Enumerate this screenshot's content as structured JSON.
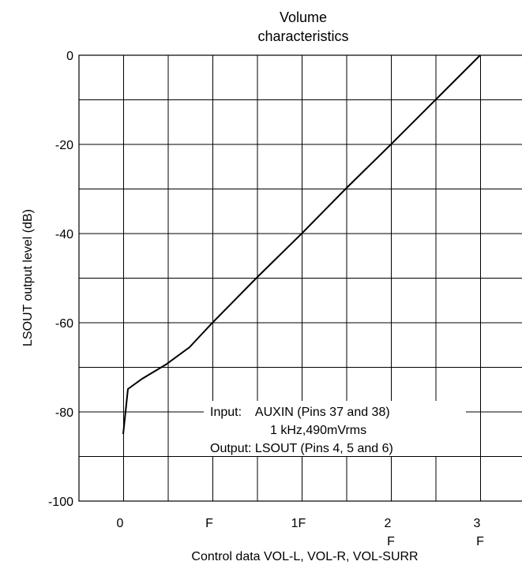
{
  "chart_data": {
    "type": "line",
    "title": [
      "Volume",
      "characteristics"
    ],
    "xlabel": "Control data VOL-L, VOL-R, VOL-SURR",
    "ylabel": "LSOUT output level (dB)",
    "xlim": [
      0,
      48
    ],
    "ylim": [
      -100,
      0
    ],
    "grid": true,
    "x_ticks": [
      {
        "x": 0,
        "lines": [
          "0"
        ]
      },
      {
        "x": 15,
        "lines": [
          "F"
        ]
      },
      {
        "x": 31,
        "lines": [
          "1F"
        ]
      },
      {
        "x": 47,
        "lines": [
          "2",
          "F"
        ]
      },
      {
        "x": 63,
        "lines": [
          "3",
          "F"
        ]
      }
    ],
    "y_ticks": [
      0,
      -20,
      -40,
      -60,
      -80,
      -100
    ],
    "annotation": [
      "Input:    AUXIN (Pins 37 and 38)",
      "1 kHz,490mVrms",
      "Output: LSOUT (Pins 4, 5 and 6)"
    ],
    "series": [
      {
        "x": [
          0,
          1,
          3,
          6,
          9,
          12,
          16,
          20,
          24,
          28,
          32,
          36,
          40,
          44,
          48
        ],
        "values": [
          -85,
          -75,
          -73,
          -70,
          -66,
          -62,
          -56,
          -50,
          -45,
          -40,
          -35,
          -30,
          -25,
          -20,
          -14
        ]
      }
    ]
  }
}
